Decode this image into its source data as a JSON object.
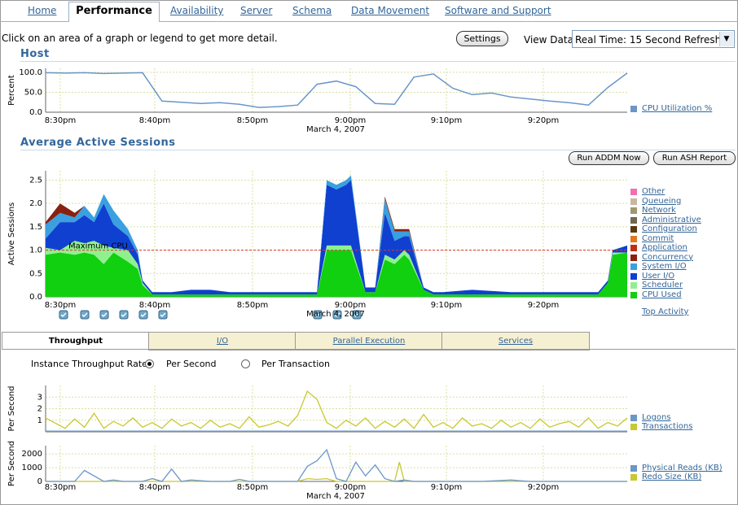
{
  "tabs": [
    {
      "label": "Home",
      "active": false
    },
    {
      "label": "Performance",
      "active": true
    },
    {
      "label": "Availability",
      "active": false
    },
    {
      "label": "Server",
      "active": false
    },
    {
      "label": "Schema",
      "active": false
    },
    {
      "label": "Data Movement",
      "active": false
    },
    {
      "label": "Software and Support",
      "active": false
    }
  ],
  "header": {
    "hint": "Click on an area of a graph or legend to get more detail.",
    "settings_label": "Settings",
    "view_data_label": "View Data",
    "view_data_value": "Real Time: 15 Second Refresh"
  },
  "time_axis": {
    "ticks": [
      "8:30pm",
      "8:40pm",
      "8:50pm",
      "9:00pm",
      "9:10pm",
      "9:20pm"
    ],
    "date": "March 4, 2007"
  },
  "host": {
    "title": "Host",
    "ylabel": "Percent",
    "legend": [
      {
        "label": "CPU Utilization %",
        "color": "#6a96c8"
      }
    ]
  },
  "sessions": {
    "title": "Average Active Sessions",
    "ylabel": "Active Sessions",
    "run_addm_label": "Run ADDM Now",
    "run_ash_label": "Run ASH Report",
    "max_cpu_label": "Maximum CPU",
    "top_activity_label": "Top Activity",
    "legend": [
      {
        "label": "Other",
        "color": "#f070b0"
      },
      {
        "label": "Queueing",
        "color": "#c8b8a0"
      },
      {
        "label": "Network",
        "color": "#a09870"
      },
      {
        "label": "Administrative",
        "color": "#706850"
      },
      {
        "label": "Configuration",
        "color": "#5a3a10"
      },
      {
        "label": "Commit",
        "color": "#e07820"
      },
      {
        "label": "Application",
        "color": "#c03010"
      },
      {
        "label": "Concurrency",
        "color": "#8a2010"
      },
      {
        "label": "System I/O",
        "color": "#3aa0e0"
      },
      {
        "label": "User I/O",
        "color": "#1040d0"
      },
      {
        "label": "Scheduler",
        "color": "#90f090"
      },
      {
        "label": "CPU Used",
        "color": "#10d010"
      }
    ]
  },
  "lower_tabs": [
    {
      "label": "Throughput",
      "active": true
    },
    {
      "label": "I/O",
      "active": false
    },
    {
      "label": "Parallel Execution",
      "active": false
    },
    {
      "label": "Services",
      "active": false
    }
  ],
  "throughput": {
    "rate_label": "Instance Throughput Rate",
    "per_second_label": "Per Second",
    "per_transaction_label": "Per Transaction",
    "selected": "Per Second",
    "chart1": {
      "ylabel": "Per Second",
      "legend": [
        {
          "label": "Logons",
          "color": "#6a96c8"
        },
        {
          "label": "Transactions",
          "color": "#c8c830"
        }
      ]
    },
    "chart2": {
      "ylabel": "Per Second",
      "legend": [
        {
          "label": "Physical Reads (KB)",
          "color": "#6a96c8"
        },
        {
          "label": "Redo Size (KB)",
          "color": "#c8c830"
        }
      ]
    }
  },
  "chart_data": [
    {
      "type": "line",
      "title": "Host",
      "ylabel": "Percent",
      "ylim": [
        0,
        110
      ],
      "yticks": [
        "0.0",
        "50.0",
        "100.0"
      ],
      "xlim": [
        0,
        60
      ],
      "series": [
        {
          "name": "CPU Utilization %",
          "color": "#6a96c8",
          "x": [
            0,
            2,
            4,
            6,
            8,
            10,
            12,
            14,
            16,
            18,
            20,
            22,
            24,
            26,
            28,
            30,
            32,
            34,
            36,
            38,
            40,
            42,
            44,
            46,
            48,
            50,
            52,
            54,
            56,
            58,
            60
          ],
          "values": [
            99,
            98,
            99,
            97,
            98,
            99,
            28,
            25,
            22,
            24,
            20,
            12,
            14,
            18,
            70,
            78,
            64,
            22,
            20,
            88,
            96,
            60,
            44,
            48,
            38,
            33,
            28,
            24,
            18,
            62,
            98
          ]
        }
      ]
    },
    {
      "type": "area",
      "title": "Average Active Sessions",
      "ylabel": "Active Sessions",
      "ylim": [
        0,
        2.7
      ],
      "yticks": [
        "0.0",
        "0.5",
        "1.0",
        "1.5",
        "2.0",
        "2.5"
      ],
      "max_cpu": 1.0,
      "xlim": [
        0,
        60
      ],
      "x": [
        0,
        1.5,
        3,
        4,
        5,
        6,
        7,
        8.5,
        9.5,
        10,
        11,
        12,
        13,
        15,
        17,
        19,
        20,
        21,
        22,
        24,
        27,
        28,
        29,
        30,
        31,
        31.5,
        33,
        34,
        35,
        36,
        37,
        37.5,
        39,
        40,
        41,
        44,
        48,
        50,
        52,
        55,
        57,
        58,
        58.5,
        60
      ],
      "series": [
        {
          "name": "CPU Used",
          "values": [
            0.9,
            0.95,
            0.9,
            0.95,
            0.9,
            0.7,
            0.95,
            0.75,
            0.6,
            0.25,
            0.05,
            0.05,
            0.05,
            0.05,
            0.05,
            0.05,
            0.05,
            0.05,
            0.05,
            0.05,
            0.05,
            0.05,
            1.0,
            1.0,
            1.0,
            1.0,
            0.1,
            0.1,
            0.8,
            0.7,
            0.9,
            0.8,
            0.15,
            0.05,
            0.05,
            0.05,
            0.05,
            0.05,
            0.05,
            0.05,
            0.05,
            0.3,
            0.9,
            0.95
          ]
        },
        {
          "name": "Scheduler",
          "values": [
            0.15,
            0.05,
            0.3,
            0.2,
            0.3,
            0.4,
            0.1,
            0.25,
            0.1,
            0.05,
            0.0,
            0.0,
            0.0,
            0.0,
            0.0,
            0.0,
            0.0,
            0.0,
            0.0,
            0.0,
            0.0,
            0.0,
            0.1,
            0.1,
            0.1,
            0.1,
            0.0,
            0.0,
            0.1,
            0.1,
            0.1,
            0.1,
            0.0,
            0.0,
            0.0,
            0.0,
            0.0,
            0.0,
            0.0,
            0.0,
            0.0,
            0.0,
            0.05,
            0.0
          ]
        },
        {
          "name": "User I/O",
          "values": [
            0.2,
            0.6,
            0.4,
            0.6,
            0.4,
            0.9,
            0.5,
            0.3,
            0.2,
            0.05,
            0.05,
            0.05,
            0.05,
            0.1,
            0.1,
            0.05,
            0.05,
            0.05,
            0.05,
            0.05,
            0.05,
            0.05,
            1.3,
            1.2,
            1.3,
            1.4,
            0.1,
            0.1,
            0.9,
            0.4,
            0.3,
            0.4,
            0.05,
            0.05,
            0.05,
            0.1,
            0.05,
            0.05,
            0.05,
            0.05,
            0.05,
            0.05,
            0.05,
            0.15
          ]
        },
        {
          "name": "System I/O",
          "values": [
            0.3,
            0.2,
            0.1,
            0.2,
            0.1,
            0.2,
            0.3,
            0.15,
            0.1,
            0.0,
            0.0,
            0.0,
            0.0,
            0.0,
            0.0,
            0.0,
            0.0,
            0.0,
            0.0,
            0.0,
            0.0,
            0.0,
            0.1,
            0.1,
            0.1,
            0.1,
            0.0,
            0.0,
            0.3,
            0.2,
            0.1,
            0.1,
            0.0,
            0.0,
            0.0,
            0.0,
            0.0,
            0.0,
            0.0,
            0.0,
            0.0,
            0.0,
            0.0,
            0.0
          ]
        },
        {
          "name": "Concurrency",
          "values": [
            0.05,
            0.2,
            0.1,
            0.0,
            0.0,
            0.0,
            0.0,
            0.0,
            0.0,
            0.0,
            0.0,
            0.0,
            0.0,
            0.0,
            0.0,
            0.0,
            0.0,
            0.0,
            0.0,
            0.0,
            0.0,
            0.0,
            0.0,
            0.0,
            0.0,
            0.0,
            0.0,
            0.0,
            0.05,
            0.05,
            0.05,
            0.05,
            0.0,
            0.0,
            0.0,
            0.0,
            0.0,
            0.0,
            0.0,
            0.0,
            0.0,
            0.0,
            0.0,
            0.0
          ]
        }
      ]
    },
    {
      "type": "line",
      "ylabel": "Per Second",
      "ylim": [
        0,
        4
      ],
      "yticks": [
        "1",
        "2",
        "3"
      ],
      "xlim": [
        0,
        60
      ],
      "series": [
        {
          "name": "Logons",
          "x": [
            0,
            60
          ],
          "values": [
            0.05,
            0.05
          ]
        },
        {
          "name": "Transactions",
          "x": [
            0,
            2,
            3,
            4,
            5,
            6,
            7,
            8,
            9,
            10,
            11,
            12,
            13,
            14,
            15,
            16,
            17,
            18,
            19,
            20,
            21,
            22,
            23,
            24,
            25,
            26,
            27,
            28,
            29,
            30,
            31,
            32,
            33,
            34,
            35,
            36,
            37,
            38,
            39,
            40,
            41,
            42,
            43,
            44,
            45,
            46,
            47,
            48,
            49,
            50,
            51,
            52,
            53,
            54,
            55,
            56,
            57,
            58,
            59,
            60
          ],
          "values": [
            1.2,
            0.3,
            1.1,
            0.4,
            1.6,
            0.3,
            0.9,
            0.5,
            1.2,
            0.4,
            0.8,
            0.3,
            1.1,
            0.5,
            0.8,
            0.3,
            1.0,
            0.4,
            0.7,
            0.3,
            1.3,
            0.4,
            0.6,
            0.9,
            0.5,
            1.4,
            3.5,
            2.8,
            0.8,
            0.3,
            1.0,
            0.5,
            1.2,
            0.3,
            0.9,
            0.4,
            1.1,
            0.3,
            1.5,
            0.4,
            0.8,
            0.3,
            1.2,
            0.5,
            0.7,
            0.3,
            1.0,
            0.4,
            0.8,
            0.3,
            1.1,
            0.4,
            0.7,
            0.9,
            0.4,
            1.2,
            0.3,
            0.8,
            0.5,
            1.2
          ]
        }
      ]
    },
    {
      "type": "line",
      "ylabel": "Per Second",
      "ylim": [
        0,
        2600
      ],
      "yticks": [
        "0",
        "1000",
        "2000"
      ],
      "xlim": [
        0,
        60
      ],
      "series": [
        {
          "name": "Physical Reads (KB)",
          "x": [
            0,
            2,
            3,
            4,
            6,
            7,
            8,
            9,
            10,
            11,
            12,
            13,
            14,
            15,
            17,
            18,
            19,
            20,
            21,
            22,
            23,
            24,
            25,
            26,
            27,
            28,
            29,
            30,
            31,
            32,
            33,
            34,
            35,
            36,
            37,
            38,
            40,
            45,
            48,
            50,
            55,
            58,
            60
          ],
          "values": [
            0,
            0,
            0,
            800,
            0,
            100,
            0,
            0,
            0,
            200,
            0,
            900,
            0,
            100,
            0,
            0,
            0,
            150,
            0,
            0,
            0,
            0,
            0,
            0,
            1100,
            1500,
            2300,
            200,
            0,
            1400,
            400,
            1200,
            200,
            0,
            100,
            0,
            0,
            0,
            100,
            0,
            0,
            0,
            0
          ]
        },
        {
          "name": "Redo Size (KB)",
          "x": [
            0,
            10,
            20,
            26,
            27,
            28,
            29,
            30,
            36,
            36.5,
            37,
            40,
            50,
            60
          ],
          "values": [
            0,
            0,
            0,
            0,
            200,
            150,
            200,
            0,
            0,
            1400,
            0,
            0,
            0,
            0
          ]
        }
      ]
    }
  ]
}
